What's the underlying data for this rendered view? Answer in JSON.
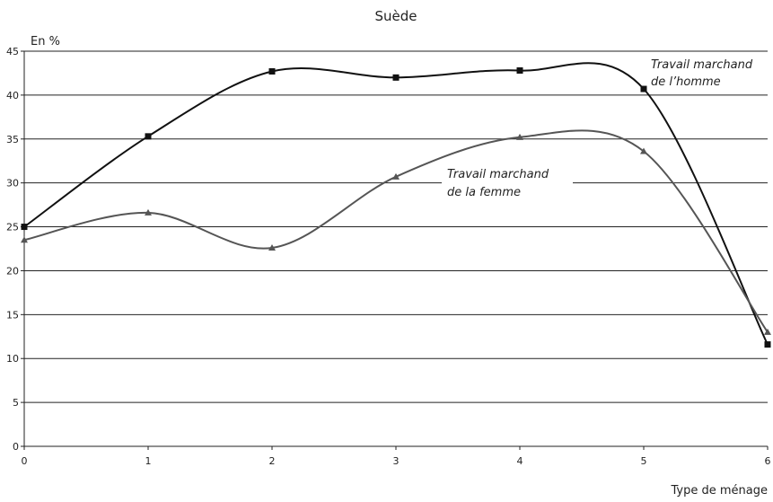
{
  "chart_data": {
    "type": "line",
    "title": "Suède",
    "ylabel": "En %",
    "xlabel": "Type de ménage",
    "ylim": [
      0,
      45
    ],
    "xlim": [
      0,
      6
    ],
    "yticks": [
      0,
      5,
      10,
      15,
      20,
      25,
      30,
      35,
      40,
      45
    ],
    "xticks": [
      0,
      1,
      2,
      3,
      4,
      5,
      6
    ],
    "grid": "horizontal",
    "series": [
      {
        "name": "Travail marchand de l'homme",
        "color": "#111111",
        "marker": "square",
        "x": [
          0,
          1,
          2,
          3,
          4,
          5,
          6
        ],
        "y": [
          25,
          35.3,
          42.7,
          42,
          42.8,
          40.7,
          11.6
        ]
      },
      {
        "name": "Travail marchand de la femme",
        "color": "#555555",
        "marker": "triangle",
        "x": [
          0,
          1,
          2,
          3,
          4,
          5,
          6
        ],
        "y": [
          23.5,
          26.6,
          22.6,
          30.7,
          35.2,
          33.6,
          13
        ]
      }
    ],
    "annotations": {
      "homme_line1": "Travail marchand",
      "homme_line2": "de l’homme",
      "femme_line1": "Travail marchand",
      "femme_line2": "de la femme"
    }
  }
}
